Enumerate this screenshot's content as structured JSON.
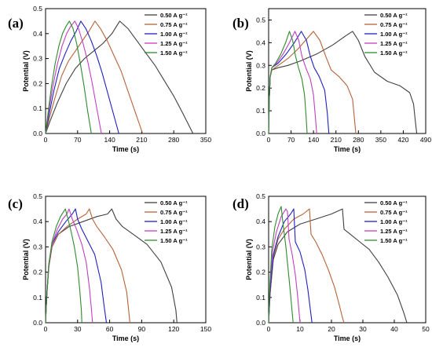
{
  "chart_data": [
    {
      "type": "line",
      "panel_label": "(a)",
      "xlabel": "Time (s)",
      "ylabel": "Potential (V)",
      "xlim": [
        0,
        350
      ],
      "ylim": [
        0,
        0.5
      ],
      "xticks": [
        0,
        70,
        140,
        210,
        280,
        350
      ],
      "xtick_labels": [
        "0",
        "70",
        "140",
        "210",
        "280",
        "350"
      ],
      "yticks": [
        0,
        0.1,
        0.2,
        0.3,
        0.4,
        0.5
      ],
      "ytick_labels": [
        "0.0",
        "0.1",
        "0.2",
        "0.3",
        "0.4",
        "0.5"
      ],
      "legend_position": "top-right",
      "series": [
        {
          "name": "0.50 A g⁻¹",
          "color": "#404040",
          "x": [
            0,
            10,
            25,
            45,
            65,
            85,
            105,
            125,
            145,
            162,
            180,
            200,
            220,
            240,
            260,
            280,
            300,
            322
          ],
          "y": [
            0,
            0.05,
            0.12,
            0.2,
            0.26,
            0.3,
            0.33,
            0.36,
            0.4,
            0.45,
            0.42,
            0.37,
            0.32,
            0.27,
            0.21,
            0.15,
            0.08,
            0
          ]
        },
        {
          "name": "0.75 A g⁻¹",
          "color": "#b5633a",
          "x": [
            0,
            8,
            20,
            35,
            50,
            65,
            80,
            95,
            108,
            120,
            135,
            150,
            165,
            180,
            195,
            212
          ],
          "y": [
            0,
            0.06,
            0.14,
            0.23,
            0.29,
            0.33,
            0.37,
            0.41,
            0.45,
            0.42,
            0.37,
            0.31,
            0.25,
            0.17,
            0.09,
            0
          ]
        },
        {
          "name": "1.00 A g⁻¹",
          "color": "#2020c0",
          "x": [
            0,
            8,
            18,
            30,
            43,
            55,
            67,
            77,
            88,
            100,
            112,
            124,
            136,
            148,
            160
          ],
          "y": [
            0,
            0.08,
            0.17,
            0.26,
            0.32,
            0.37,
            0.41,
            0.45,
            0.42,
            0.37,
            0.31,
            0.24,
            0.16,
            0.08,
            0
          ]
        },
        {
          "name": "1.25 A g⁻¹",
          "color": "#c040c0",
          "x": [
            0,
            7,
            16,
            26,
            36,
            46,
            55,
            64,
            72,
            82,
            92,
            101,
            110,
            122
          ],
          "y": [
            0,
            0.09,
            0.19,
            0.28,
            0.35,
            0.4,
            0.43,
            0.45,
            0.42,
            0.36,
            0.29,
            0.21,
            0.12,
            0
          ]
        },
        {
          "name": "1.50 A g⁻¹",
          "color": "#2e8b2e",
          "x": [
            0,
            6,
            13,
            21,
            29,
            37,
            45,
            52,
            60,
            68,
            76,
            84,
            92,
            100
          ],
          "y": [
            0,
            0.09,
            0.19,
            0.28,
            0.35,
            0.4,
            0.43,
            0.45,
            0.42,
            0.36,
            0.28,
            0.19,
            0.09,
            0
          ]
        }
      ]
    },
    {
      "type": "line",
      "panel_label": "(b)",
      "xlabel": "Time (s)",
      "ylabel": "Potential (V)",
      "xlim": [
        0,
        490
      ],
      "ylim": [
        0,
        0.55
      ],
      "xticks": [
        0,
        70,
        140,
        210,
        280,
        350,
        420,
        490
      ],
      "xtick_labels": [
        "0",
        "70",
        "140",
        "210",
        "280",
        "350",
        "420",
        "490"
      ],
      "yticks": [
        0,
        0.1,
        0.2,
        0.3,
        0.4,
        0.5
      ],
      "ytick_labels": [
        "0.0",
        "0.1",
        "0.2",
        "0.3",
        "0.4",
        "0.5"
      ],
      "legend_position": "top-right",
      "series": [
        {
          "name": "0.50 A g⁻¹",
          "color": "#404040",
          "x": [
            0,
            2,
            5,
            10,
            30,
            60,
            100,
            150,
            200,
            240,
            262,
            280,
            300,
            330,
            370,
            410,
            440,
            452,
            458,
            462
          ],
          "y": [
            0,
            0.15,
            0.25,
            0.28,
            0.29,
            0.3,
            0.32,
            0.35,
            0.39,
            0.43,
            0.45,
            0.41,
            0.34,
            0.27,
            0.23,
            0.21,
            0.18,
            0.13,
            0.05,
            0
          ]
        },
        {
          "name": "0.75 A g⁻¹",
          "color": "#b5633a",
          "x": [
            0,
            2,
            5,
            10,
            30,
            60,
            90,
            115,
            140,
            160,
            178,
            195,
            220,
            245,
            262,
            268,
            272
          ],
          "y": [
            0,
            0.15,
            0.25,
            0.28,
            0.3,
            0.33,
            0.37,
            0.41,
            0.45,
            0.41,
            0.34,
            0.28,
            0.25,
            0.21,
            0.15,
            0.06,
            0
          ]
        },
        {
          "name": "1.00 A g⁻¹",
          "color": "#2020c0",
          "x": [
            0,
            2,
            5,
            10,
            30,
            55,
            80,
            102,
            118,
            130,
            142,
            158,
            175,
            183,
            188
          ],
          "y": [
            0,
            0.15,
            0.25,
            0.29,
            0.31,
            0.35,
            0.4,
            0.45,
            0.41,
            0.34,
            0.29,
            0.25,
            0.19,
            0.09,
            0
          ]
        },
        {
          "name": "1.25 A g⁻¹",
          "color": "#c040c0",
          "x": [
            0,
            2,
            5,
            10,
            25,
            45,
            65,
            82,
            94,
            104,
            116,
            130,
            140,
            146,
            150
          ],
          "y": [
            0,
            0.15,
            0.25,
            0.29,
            0.31,
            0.35,
            0.4,
            0.45,
            0.41,
            0.34,
            0.29,
            0.24,
            0.17,
            0.07,
            0
          ]
        },
        {
          "name": "1.50 A g⁻¹",
          "color": "#2e8b2e",
          "x": [
            0,
            2,
            5,
            10,
            22,
            38,
            53,
            65,
            75,
            84,
            93,
            104,
            112,
            117,
            120
          ],
          "y": [
            0,
            0.15,
            0.25,
            0.29,
            0.31,
            0.35,
            0.4,
            0.45,
            0.41,
            0.34,
            0.29,
            0.24,
            0.17,
            0.07,
            0
          ]
        }
      ]
    },
    {
      "type": "line",
      "panel_label": "(c)",
      "xlabel": "Time (s)",
      "ylabel": "Potential (V)",
      "xlim": [
        0,
        150
      ],
      "ylim": [
        0,
        0.5
      ],
      "xticks": [
        0,
        30,
        60,
        90,
        120,
        150
      ],
      "xtick_labels": [
        "0",
        "30",
        "60",
        "90",
        "120",
        "150"
      ],
      "yticks": [
        0,
        0.1,
        0.2,
        0.3,
        0.4,
        0.5
      ],
      "ytick_labels": [
        "0.0",
        "0.1",
        "0.2",
        "0.3",
        "0.4",
        "0.5"
      ],
      "legend_position": "top-right",
      "series": [
        {
          "name": "0.50 A g⁻¹",
          "color": "#404040",
          "x": [
            0,
            1,
            3,
            6,
            12,
            22,
            35,
            48,
            58,
            62,
            66,
            72,
            82,
            95,
            108,
            118,
            122,
            123
          ],
          "y": [
            0,
            0.1,
            0.22,
            0.3,
            0.35,
            0.38,
            0.4,
            0.42,
            0.43,
            0.45,
            0.41,
            0.38,
            0.35,
            0.31,
            0.24,
            0.14,
            0.05,
            0
          ]
        },
        {
          "name": "0.75 A g⁻¹",
          "color": "#b5633a",
          "x": [
            0,
            1,
            3,
            6,
            12,
            20,
            30,
            38,
            41,
            44,
            48,
            55,
            63,
            71,
            76,
            78,
            79
          ],
          "y": [
            0,
            0.1,
            0.22,
            0.3,
            0.35,
            0.38,
            0.41,
            0.43,
            0.45,
            0.41,
            0.38,
            0.34,
            0.29,
            0.21,
            0.12,
            0.04,
            0
          ]
        },
        {
          "name": "1.00 A g⁻¹",
          "color": "#2020c0",
          "x": [
            0,
            1,
            3,
            6,
            12,
            19,
            25,
            28,
            30,
            34,
            40,
            46,
            52,
            55,
            57
          ],
          "y": [
            0,
            0.1,
            0.23,
            0.31,
            0.36,
            0.4,
            0.43,
            0.45,
            0.41,
            0.37,
            0.32,
            0.27,
            0.16,
            0.06,
            0
          ]
        },
        {
          "name": "1.25 A g⁻¹",
          "color": "#c040c0",
          "x": [
            0,
            1,
            3,
            6,
            11,
            16,
            20,
            22,
            25,
            29,
            34,
            38,
            41,
            43,
            44
          ],
          "y": [
            0,
            0.1,
            0.23,
            0.31,
            0.37,
            0.41,
            0.43,
            0.45,
            0.41,
            0.37,
            0.31,
            0.24,
            0.14,
            0.05,
            0
          ]
        },
        {
          "name": "1.50 A g⁻¹",
          "color": "#2e8b2e",
          "x": [
            0,
            1,
            3,
            6,
            10,
            14,
            17,
            18.5,
            21,
            24,
            27,
            30,
            32,
            33.5,
            34
          ],
          "y": [
            0,
            0.1,
            0.23,
            0.32,
            0.38,
            0.42,
            0.44,
            0.45,
            0.41,
            0.36,
            0.3,
            0.22,
            0.13,
            0.05,
            0
          ]
        }
      ]
    },
    {
      "type": "line",
      "panel_label": "(d)",
      "xlabel": "Time (s)",
      "ylabel": "Potential (V)",
      "xlim": [
        0,
        50
      ],
      "ylim": [
        0,
        0.5
      ],
      "xticks": [
        0,
        10,
        20,
        30,
        40,
        50
      ],
      "xtick_labels": [
        "0",
        "10",
        "20",
        "30",
        "40",
        "50"
      ],
      "yticks": [
        0,
        0.1,
        0.2,
        0.3,
        0.4,
        0.5
      ],
      "ytick_labels": [
        "0.0",
        "0.1",
        "0.2",
        "0.3",
        "0.4",
        "0.5"
      ],
      "legend_position": "top-right",
      "series": [
        {
          "name": "0.50 A g⁻¹",
          "color": "#404040",
          "x": [
            0,
            0.5,
            1.5,
            3,
            6,
            10,
            15,
            20,
            23.5,
            24,
            26,
            29,
            32,
            35,
            38,
            41,
            43,
            44
          ],
          "y": [
            0,
            0.12,
            0.25,
            0.31,
            0.36,
            0.39,
            0.41,
            0.43,
            0.45,
            0.37,
            0.35,
            0.32,
            0.29,
            0.24,
            0.18,
            0.11,
            0.04,
            0
          ]
        },
        {
          "name": "0.75 A g⁻¹",
          "color": "#b5633a",
          "x": [
            0,
            0.5,
            1.5,
            3,
            5,
            8,
            11,
            13,
            13.5,
            15,
            17,
            19,
            21,
            22.5,
            23.5,
            24
          ],
          "y": [
            0,
            0.12,
            0.26,
            0.33,
            0.37,
            0.41,
            0.43,
            0.45,
            0.35,
            0.32,
            0.27,
            0.21,
            0.14,
            0.07,
            0.02,
            0
          ]
        },
        {
          "name": "1.00 A g⁻¹",
          "color": "#2020c0",
          "x": [
            0,
            0.5,
            1.5,
            3,
            5,
            7,
            8,
            8.5,
            10,
            11.5,
            12.5,
            13.3,
            13.8
          ],
          "y": [
            0,
            0.13,
            0.27,
            0.34,
            0.4,
            0.43,
            0.45,
            0.32,
            0.28,
            0.21,
            0.13,
            0.05,
            0
          ]
        },
        {
          "name": "1.25 A g⁻¹",
          "color": "#c040c0",
          "x": [
            0,
            0.4,
            1.2,
            2.5,
            4,
            5.5,
            6,
            6.5,
            7.5,
            8.5,
            9.2,
            9.7,
            10
          ],
          "y": [
            0,
            0.14,
            0.28,
            0.36,
            0.42,
            0.45,
            0.44,
            0.33,
            0.27,
            0.19,
            0.11,
            0.04,
            0
          ]
        },
        {
          "name": "1.50 A g⁻¹",
          "color": "#2e8b2e",
          "x": [
            0,
            0.4,
            1,
            2,
            3,
            4,
            4.5,
            5.5,
            6.3,
            7,
            7.5,
            7.8
          ],
          "y": [
            0,
            0.15,
            0.29,
            0.38,
            0.43,
            0.46,
            0.4,
            0.3,
            0.2,
            0.11,
            0.04,
            0
          ]
        }
      ]
    }
  ]
}
